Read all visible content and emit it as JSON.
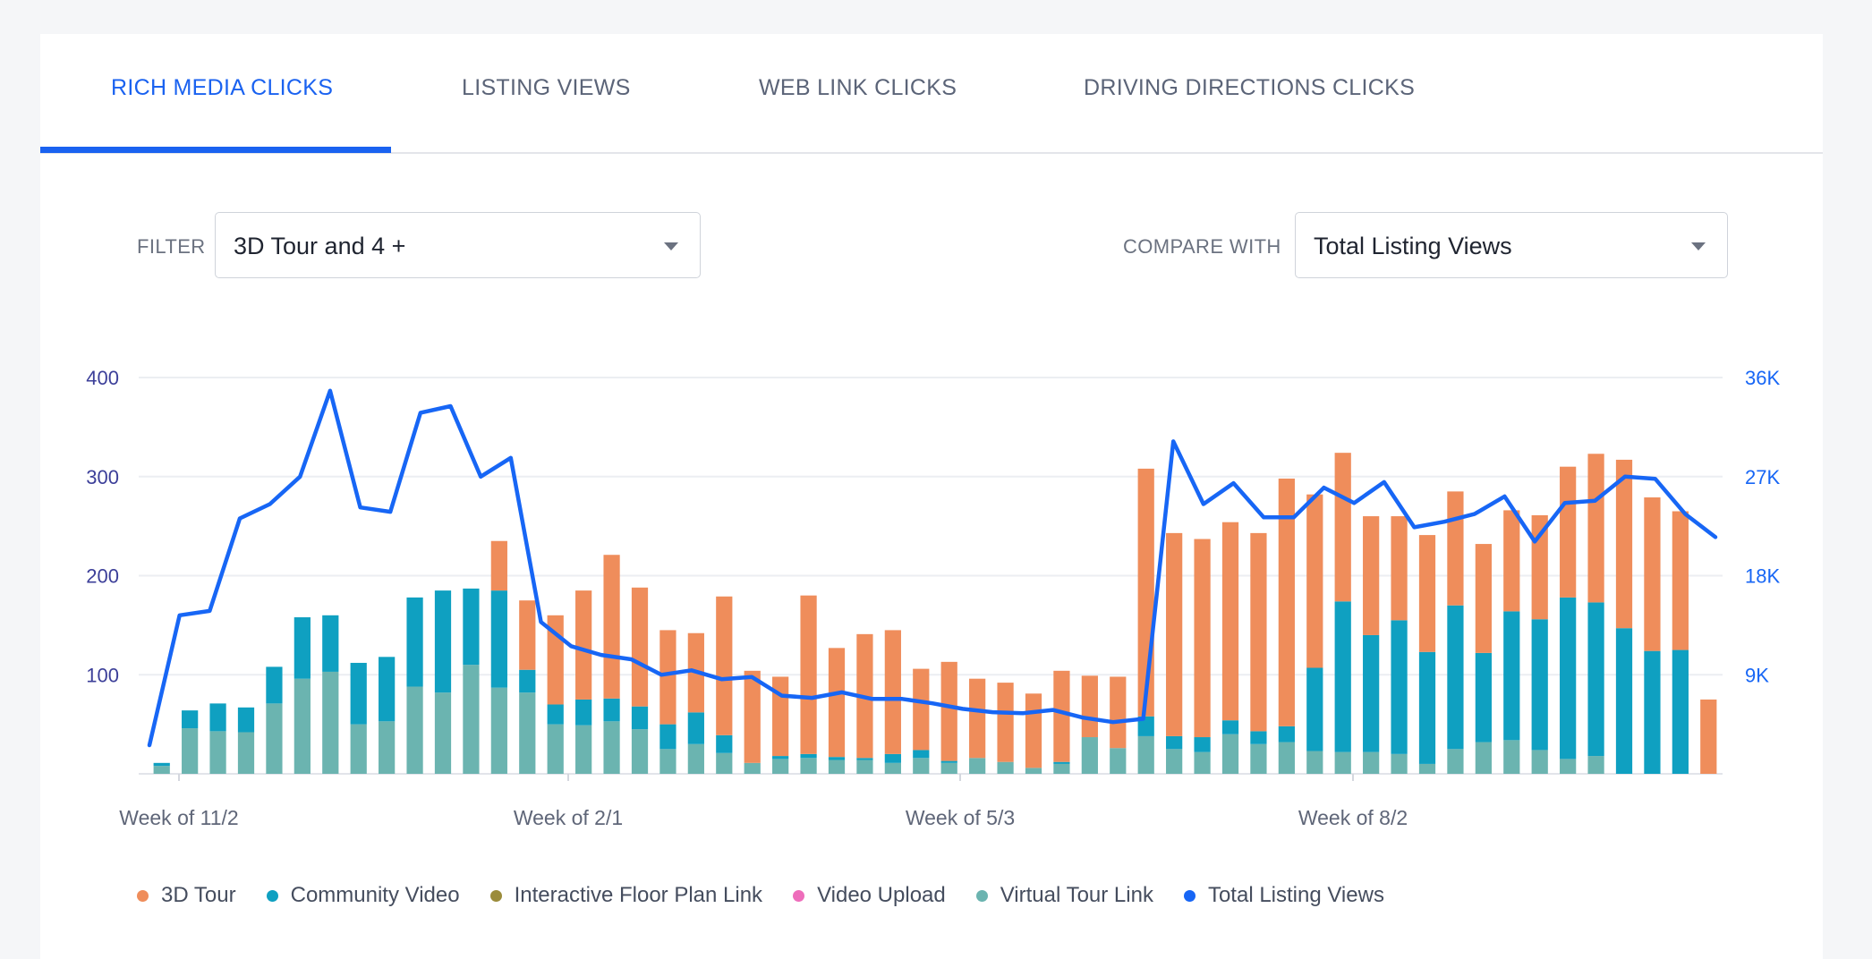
{
  "tabs": [
    {
      "label": "RICH MEDIA CLICKS",
      "active": true
    },
    {
      "label": "LISTING VIEWS",
      "active": false
    },
    {
      "label": "WEB LINK CLICKS",
      "active": false
    },
    {
      "label": "DRIVING DIRECTIONS CLICKS",
      "active": false
    }
  ],
  "filter": {
    "label": "FILTER",
    "value": "3D Tour and 4 +",
    "icon": "chevron-down-icon"
  },
  "compare": {
    "label": "COMPARE WITH",
    "value": "Total Listing Views",
    "icon": "chevron-down-icon"
  },
  "colors": {
    "accent": "#1a62f0",
    "tour3d": "#ef8d5b",
    "community": "#0fa0c1",
    "floorplan": "#9b8c3b",
    "video": "#ee6dbb",
    "virtual": "#6bb4b0",
    "line": "#1766f5",
    "left_axis": "#3c3f99",
    "right_axis": "#1766f5"
  },
  "chart_data": {
    "type": "bar",
    "stacked": true,
    "x_tick_labels": [
      "Week of 11/2",
      "Week of 2/1",
      "Week of 5/3",
      "Week of 8/2"
    ],
    "y_left": {
      "ticks": [
        100,
        200,
        300,
        400
      ],
      "tick_labels": [
        "100",
        "200",
        "300",
        "400"
      ],
      "ylim": [
        0,
        400
      ]
    },
    "y_right": {
      "ticks": [
        9000,
        18000,
        27000,
        36000
      ],
      "tick_labels": [
        "9K",
        "18K",
        "27K",
        "36K"
      ],
      "ylim": [
        0,
        36000
      ]
    },
    "grid": true,
    "legend_position": "bottom-left",
    "series": [
      {
        "name": "3D Tour",
        "color_key": "tour3d",
        "values": [
          0,
          0,
          0,
          0,
          0,
          0,
          0,
          0,
          0,
          0,
          0,
          0,
          50,
          70,
          90,
          110,
          145,
          120,
          95,
          80,
          140,
          93,
          80,
          160,
          110,
          125,
          125,
          82,
          100,
          80,
          80,
          75,
          92,
          62,
          72,
          250,
          205,
          200,
          200,
          200,
          250,
          175,
          150,
          120,
          105,
          118,
          115,
          110,
          102,
          105,
          132,
          150,
          170,
          155,
          140,
          75
        ]
      },
      {
        "name": "Community Video",
        "color_key": "community",
        "values": [
          3,
          18,
          28,
          25,
          37,
          62,
          57,
          62,
          65,
          90,
          103,
          77,
          98,
          23,
          20,
          26,
          23,
          23,
          25,
          32,
          18,
          0,
          3,
          4,
          3,
          2,
          9,
          8,
          2,
          0,
          0,
          0,
          2,
          0,
          0,
          20,
          13,
          15,
          14,
          13,
          16,
          84,
          152,
          118,
          135,
          113,
          145,
          90,
          130,
          132,
          163,
          155,
          147,
          124,
          125
        ]
      },
      {
        "name": "Interactive Floor Plan Link",
        "color_key": "floorplan",
        "values": []
      },
      {
        "name": "Video Upload",
        "color_key": "video",
        "values": []
      },
      {
        "name": "Virtual Tour Link",
        "color_key": "virtual",
        "values": [
          8,
          46,
          43,
          42,
          71,
          96,
          103,
          50,
          53,
          88,
          82,
          110,
          87,
          82,
          50,
          49,
          53,
          45,
          25,
          30,
          21,
          11,
          15,
          16,
          14,
          14,
          11,
          16,
          11,
          16,
          12,
          6,
          10,
          37,
          26,
          38,
          25,
          22,
          40,
          30,
          32,
          23,
          22,
          22,
          20,
          10,
          25,
          32,
          34,
          24,
          15,
          18
        ]
      },
      {
        "name": "Total Listing Views",
        "color_key": "line",
        "axis": "right",
        "type": "line",
        "values": [
          2600,
          14400,
          14800,
          23200,
          24500,
          27000,
          34800,
          24200,
          23800,
          32800,
          33400,
          27000,
          28700,
          13800,
          11600,
          10800,
          10400,
          9000,
          9400,
          8600,
          8800,
          7100,
          6900,
          7400,
          6800,
          6800,
          6400,
          5900,
          5600,
          5500,
          5800,
          5100,
          4700,
          5000,
          30200,
          24500,
          26400,
          23300,
          23300,
          26000,
          24600,
          26500,
          22400,
          22900,
          23600,
          25200,
          21100,
          24600,
          24800,
          27000,
          26800,
          23600,
          21500
        ]
      }
    ]
  },
  "legend": [
    "3D Tour",
    "Community Video",
    "Interactive Floor Plan Link",
    "Video Upload",
    "Virtual Tour Link",
    "Total Listing Views"
  ]
}
